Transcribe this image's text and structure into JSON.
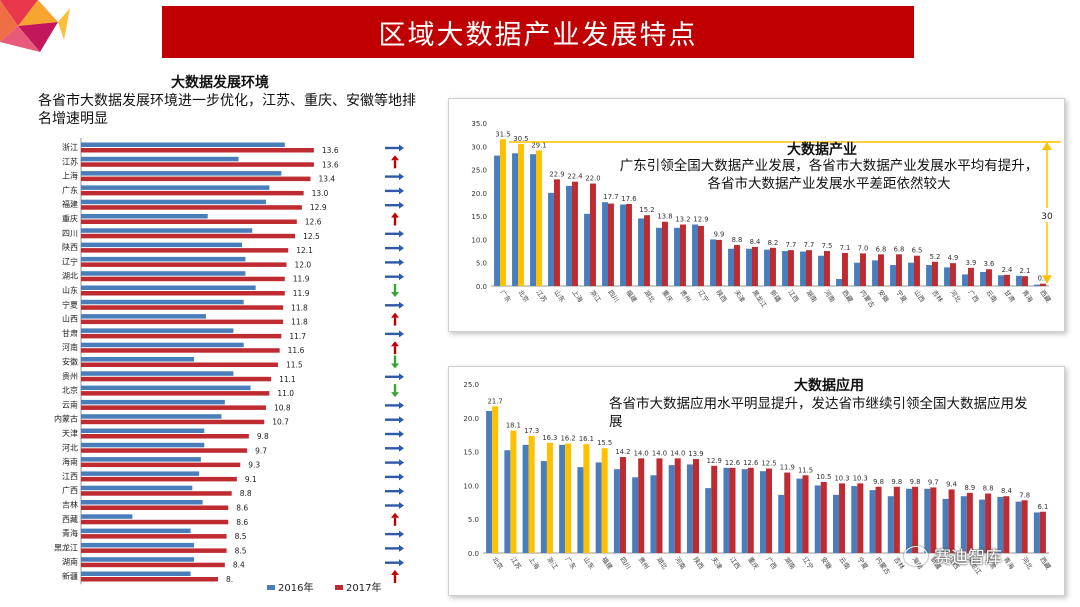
{
  "title": "区域大数据产业发展特点",
  "left": {
    "heading": "大数据发展环境",
    "description": "各省市大数据发展环境进一步优化，江苏、重庆、安徽等地排名增速明显"
  },
  "panel1": {
    "title": "大数据产业",
    "description": "广东引领全国大数据产业发展，各省市大数据产业发展水平均有提升，各省市大数据产业发展水平差距依然较大",
    "gap_label": "30"
  },
  "panel2": {
    "title": "大数据应用",
    "description": "各省市大数据应用水平明显提升，发达省市继续引领全国大数据应用发展"
  },
  "watermark": "赛迪智库",
  "colors": {
    "blue": "#4a7ebb",
    "red": "#be2b31",
    "yellow": "#ffc000",
    "title_red": "#c00000"
  },
  "chart_data": [
    {
      "id": "environment",
      "type": "bar",
      "orientation": "horizontal",
      "legend": [
        "2016年",
        "2017年"
      ],
      "categories": [
        "浙江",
        "江苏",
        "上海",
        "广东",
        "福建",
        "重庆",
        "四川",
        "陕西",
        "辽宁",
        "湖北",
        "山东",
        "宁夏",
        "山西",
        "甘肃",
        "河南",
        "安徽",
        "贵州",
        "北京",
        "云南",
        "内蒙古",
        "天津",
        "河北",
        "海南",
        "江西",
        "广西",
        "吉林",
        "西藏",
        "青海",
        "黑龙江",
        "湖南",
        "新疆"
      ],
      "series": [
        {
          "name": "2016年",
          "values": [
            11.9,
            9.2,
            11.7,
            11.0,
            10.8,
            7.4,
            10.0,
            9.4,
            9.6,
            9.6,
            10.2,
            9.5,
            7.3,
            8.9,
            9.5,
            6.6,
            8.9,
            9.9,
            8.4,
            8.2,
            7.2,
            7.2,
            7.0,
            6.9,
            6.5,
            7.1,
            3.0,
            6.4,
            6.6,
            6.6,
            6.4
          ]
        },
        {
          "name": "2017年",
          "values": [
            13.6,
            13.6,
            13.4,
            13.0,
            12.9,
            12.6,
            12.5,
            12.1,
            12.0,
            11.9,
            11.9,
            11.8,
            11.8,
            11.7,
            11.6,
            11.5,
            11.1,
            11.0,
            10.8,
            10.7,
            9.8,
            9.7,
            9.3,
            9.1,
            8.8,
            8.6,
            8.6,
            8.5,
            8.5,
            8.4,
            8.0
          ]
        }
      ],
      "value_labels": [
        "13.6",
        "13.6",
        "13.4",
        "13.0",
        "12.9",
        "12.6",
        "12.5",
        "12.1",
        "12.0",
        "11.9",
        "11.9",
        "11.8",
        "11.8",
        "11.7",
        "11.6",
        "11.5",
        "11.1",
        "11.0",
        "10.8",
        "10.7",
        "9.8",
        "9.7",
        "9.3",
        "9.1",
        "8.8",
        "8.6",
        "8.6",
        "8.5",
        "8.5",
        "8.4",
        "8."
      ],
      "trend": [
        "flat",
        "up",
        "flat",
        "flat",
        "flat",
        "up",
        "flat",
        "flat",
        "flat",
        "flat",
        "down",
        "flat",
        "up",
        "flat",
        "up",
        "down",
        "flat",
        "down",
        "flat",
        "flat",
        "flat",
        "flat",
        "flat",
        "flat",
        "flat",
        "flat",
        "up",
        "flat",
        "flat",
        "flat",
        "up"
      ],
      "xlim": [
        0,
        14
      ]
    },
    {
      "id": "industry",
      "type": "bar",
      "categories": [
        "广东",
        "北京",
        "江苏",
        "山东",
        "上海",
        "浙江",
        "四川",
        "福建",
        "湖北",
        "重庆",
        "贵州",
        "辽宁",
        "陕西",
        "天津",
        "黑龙江",
        "新疆",
        "江西",
        "湖南",
        "河南",
        "西藏",
        "内蒙古",
        "安徽",
        "宁夏",
        "山西",
        "吉林",
        "河北",
        "广西",
        "云南",
        "甘肃",
        "青海",
        "西藏"
      ],
      "series": [
        {
          "name": "2016年",
          "values": [
            28.0,
            28.5,
            28.3,
            20.0,
            21.5,
            15.5,
            18.0,
            17.5,
            14.5,
            12.5,
            12.5,
            13.2,
            10.0,
            8.0,
            8.0,
            7.8,
            7.5,
            7.4,
            6.5,
            1.5,
            5.0,
            5.5,
            4.5,
            5.0,
            4.5,
            4.0,
            2.5,
            3.0,
            2.3,
            2.2,
            0.3
          ]
        },
        {
          "name": "2017年",
          "values": [
            31.5,
            30.5,
            29.1,
            22.9,
            22.4,
            22.0,
            17.7,
            17.6,
            15.2,
            13.8,
            13.2,
            12.9,
            9.9,
            8.8,
            8.4,
            8.2,
            7.7,
            7.7,
            7.5,
            7.1,
            7.0,
            6.8,
            6.8,
            6.5,
            5.2,
            4.9,
            3.9,
            3.6,
            2.4,
            2.1,
            0.5
          ]
        }
      ],
      "highlight_top": 3,
      "yticks": [
        "0.0",
        "5.0",
        "10.0",
        "15.0",
        "20.0",
        "25.0",
        "30.0",
        "35.0"
      ],
      "ylim": [
        0,
        35
      ]
    },
    {
      "id": "application",
      "type": "bar",
      "categories": [
        "北京",
        "江苏",
        "上海",
        "浙江",
        "广东",
        "山东",
        "福建",
        "四川",
        "贵州",
        "湖北",
        "河南",
        "陕西",
        "天津",
        "江西",
        "重庆",
        "广西",
        "湖南",
        "辽宁",
        "安徽",
        "云南",
        "宁夏",
        "内蒙古",
        "吉林",
        "海南",
        "新疆",
        "山西",
        "黑龙江",
        "甘肃",
        "青海",
        "河北",
        "西藏"
      ],
      "series": [
        {
          "name": "2016年",
          "values": [
            21.0,
            15.2,
            16.0,
            13.6,
            16.0,
            12.7,
            13.4,
            12.4,
            11.2,
            11.5,
            13.0,
            13.1,
            9.6,
            12.6,
            12.4,
            12.1,
            8.6,
            11.0,
            10.0,
            8.6,
            9.9,
            9.3,
            8.4,
            9.5,
            9.5,
            8.0,
            8.4,
            7.9,
            8.3,
            7.6,
            6.0
          ]
        },
        {
          "name": "2017年",
          "values": [
            21.7,
            18.1,
            17.3,
            16.3,
            16.2,
            16.1,
            15.5,
            14.2,
            14.0,
            14.0,
            14.0,
            13.9,
            12.9,
            12.6,
            12.6,
            12.5,
            11.9,
            11.5,
            10.5,
            10.3,
            10.3,
            9.8,
            9.8,
            9.8,
            9.7,
            9.4,
            8.9,
            8.8,
            8.4,
            7.8,
            6.1
          ]
        }
      ],
      "highlight_top": 7,
      "yticks": [
        "0.0",
        "5.0",
        "10.0",
        "15.0",
        "20.0",
        "25.0"
      ],
      "ylim": [
        0,
        25
      ]
    }
  ]
}
